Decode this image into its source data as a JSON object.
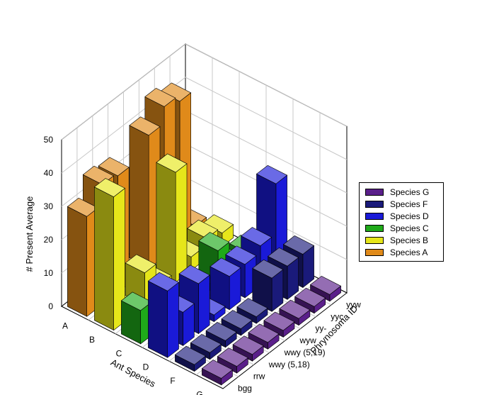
{
  "chart_data": {
    "type": "bar",
    "title": "",
    "xlabel": "Ant Species",
    "ylabel": "Phrynosoma ID",
    "zlabel": "# Present Average",
    "zlim": [
      0,
      50
    ],
    "z_ticks": [
      "0",
      "10",
      "20",
      "30",
      "40",
      "50"
    ],
    "ant_species": [
      "A",
      "B",
      "C",
      "D",
      "F",
      "G"
    ],
    "phrynosoma_ids": [
      "bgg",
      "rrw",
      "wwy (5,18)",
      "wwy (5,19)",
      "wyw",
      "yy-",
      "yyc",
      "yyw"
    ],
    "legend_position": "right",
    "series": [
      {
        "name": "Species G",
        "color": "#5a1f8a",
        "values": [
          2,
          2,
          2,
          2,
          2,
          2,
          2,
          2
        ]
      },
      {
        "name": "Species F",
        "color": "#1a1a7a",
        "values": [
          2,
          2,
          2,
          2,
          2,
          10,
          10,
          10
        ]
      },
      {
        "name": "Species D",
        "color": "#1a1ad8",
        "values": [
          20,
          10,
          15,
          2,
          10,
          10,
          12,
          27
        ]
      },
      {
        "name": "Species C",
        "color": "#1faa1a",
        "values": [
          10,
          2,
          2,
          2,
          2,
          10,
          2,
          2
        ]
      },
      {
        "name": "Species B",
        "color": "#e6e61a",
        "values": [
          40,
          2,
          10,
          3,
          33,
          4,
          6,
          4
        ]
      },
      {
        "name": "Species A",
        "color": "#e08a1a",
        "values": [
          30,
          36,
          35,
          2,
          40,
          45,
          43,
          2
        ]
      }
    ],
    "legend_order": [
      "Species G",
      "Species F",
      "Species D",
      "Species C",
      "Species B",
      "Species A"
    ],
    "axis_titles": {
      "x": "Ant Species",
      "y": "Phrynosoma ID",
      "z": "# Present Average"
    }
  }
}
